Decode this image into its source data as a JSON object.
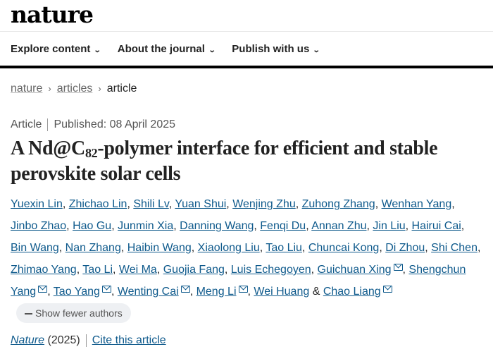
{
  "header": {
    "logo": "nature"
  },
  "nav": [
    {
      "label": "Explore content"
    },
    {
      "label": "About the journal"
    },
    {
      "label": "Publish with us"
    }
  ],
  "breadcrumb": [
    {
      "label": "nature"
    },
    {
      "label": "articles"
    },
    {
      "label": "article"
    }
  ],
  "meta": {
    "type": "Article",
    "published": "Published: 08 April 2025"
  },
  "title": {
    "pre": "A Nd@C",
    "sub": "82",
    "post": "-polymer interface for efficient and stable perovskite solar cells"
  },
  "authors": [
    {
      "name": "Yuexin Lin"
    },
    {
      "name": "Zhichao Lin"
    },
    {
      "name": "Shili Lv"
    },
    {
      "name": "Yuan Shui"
    },
    {
      "name": "Wenjing Zhu"
    },
    {
      "name": "Zuhong Zhang"
    },
    {
      "name": "Wenhan Yang"
    },
    {
      "name": "Jinbo Zhao"
    },
    {
      "name": "Hao Gu"
    },
    {
      "name": "Junmin Xia"
    },
    {
      "name": "Danning Wang"
    },
    {
      "name": "Fenqi Du"
    },
    {
      "name": "Annan Zhu"
    },
    {
      "name": "Jin Liu"
    },
    {
      "name": "Hairui Cai"
    },
    {
      "name": "Bin Wang"
    },
    {
      "name": "Nan Zhang"
    },
    {
      "name": "Haibin Wang"
    },
    {
      "name": "Xiaolong Liu"
    },
    {
      "name": "Tao Liu"
    },
    {
      "name": "Chuncai Kong"
    },
    {
      "name": "Di Zhou"
    },
    {
      "name": "Shi Chen"
    },
    {
      "name": "Zhimao Yang"
    },
    {
      "name": "Tao Li"
    },
    {
      "name": "Wei Ma"
    },
    {
      "name": "Guojia Fang"
    },
    {
      "name": "Luis Echegoyen"
    },
    {
      "name": "Guichuan Xing",
      "mail": true
    },
    {
      "name": "Shengchun Yang",
      "mail": true
    },
    {
      "name": "Tao Yang",
      "mail": true
    },
    {
      "name": "Wenting Cai",
      "mail": true
    },
    {
      "name": "Meng Li",
      "mail": true
    },
    {
      "name": "Wei Huang"
    },
    {
      "name": "Chao Liang",
      "mail": true
    }
  ],
  "authors_and": "&",
  "show_fewer": "Show fewer authors",
  "cite": {
    "journal": "Nature",
    "year": "(2025)",
    "cite_label": "Cite this article"
  }
}
